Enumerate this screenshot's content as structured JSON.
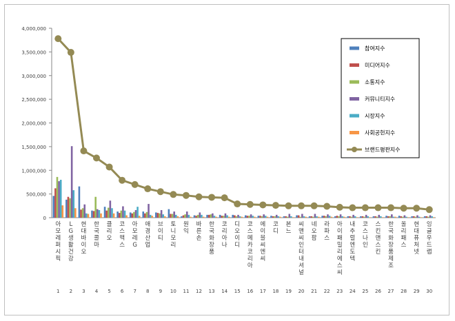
{
  "chart_data": {
    "type": "bar",
    "title": "",
    "xlabel": "",
    "ylabel": "",
    "ylim": [
      0,
      4000000
    ],
    "yticks": [
      "0",
      "500,000",
      "1,000,000",
      "1,500,000",
      "2,000,000",
      "2,500,000",
      "3,000,000",
      "3,500,000",
      "4,000,000"
    ],
    "grid": false,
    "legend_position": "right",
    "ranks": [
      "1",
      "2",
      "3",
      "4",
      "5",
      "6",
      "7",
      "8",
      "9",
      "10",
      "11",
      "12",
      "13",
      "14",
      "15",
      "16",
      "17",
      "18",
      "19",
      "20",
      "21",
      "22",
      "23",
      "24",
      "25",
      "26",
      "27",
      "28",
      "29",
      "30"
    ],
    "categories": [
      "아모레퍼시픽",
      "LG생활건강",
      "현대바이오",
      "한국콜마",
      "클리오",
      "코스맥스",
      "아모레G",
      "애경산업",
      "브이티",
      "토니모리",
      "원익",
      "바른손",
      "한국화장품",
      "코리아나",
      "디오이디",
      "코스메카코리아",
      "에이블씨엔씨",
      "코디",
      "본느",
      "씨앤씨인터내셔널",
      "네오팜",
      "라파스",
      "아이패밀리에스씨",
      "내추럴엔도텍",
      "코스나인",
      "스킨앤스킨",
      "한국화장품제조",
      "올리패스",
      "현대퓨처넷",
      "잉글우드랩"
    ],
    "series": [
      {
        "name": "참여지수",
        "color": "#4f81bd",
        "values": [
          460000,
          380000,
          660000,
          150000,
          230000,
          130000,
          110000,
          130000,
          110000,
          180000,
          30000,
          50000,
          60000,
          60000,
          60000,
          50000,
          40000,
          40000,
          30000,
          50000,
          30000,
          40000,
          30000,
          30000,
          30000,
          30000,
          40000,
          40000,
          30000,
          30000
        ]
      },
      {
        "name": "미디어지수",
        "color": "#c0504d",
        "values": [
          620000,
          440000,
          170000,
          140000,
          150000,
          100000,
          90000,
          90000,
          100000,
          80000,
          50000,
          40000,
          60000,
          40000,
          50000,
          40000,
          40000,
          30000,
          30000,
          50000,
          30000,
          40000,
          40000,
          30000,
          30000,
          30000,
          30000,
          30000,
          30000,
          30000
        ]
      },
      {
        "name": "소통지수",
        "color": "#9bbb59",
        "values": [
          860000,
          410000,
          200000,
          440000,
          210000,
          150000,
          120000,
          120000,
          90000,
          80000,
          70000,
          60000,
          70000,
          40000,
          30000,
          40000,
          30000,
          30000,
          20000,
          20000,
          20000,
          30000,
          30000,
          20000,
          20000,
          20000,
          30000,
          20000,
          20000,
          20000
        ]
      },
      {
        "name": "커뮤니티지수",
        "color": "#8064a2",
        "values": [
          770000,
          1510000,
          280000,
          180000,
          360000,
          240000,
          160000,
          290000,
          160000,
          130000,
          130000,
          110000,
          90000,
          90000,
          60000,
          70000,
          70000,
          60000,
          80000,
          80000,
          80000,
          70000,
          70000,
          60000,
          60000,
          60000,
          70000,
          50000,
          50000,
          50000
        ]
      },
      {
        "name": "시장지수",
        "color": "#4bacc6",
        "values": [
          800000,
          580000,
          90000,
          160000,
          200000,
          150000,
          230000,
          60000,
          70000,
          60000,
          60000,
          60000,
          40000,
          50000,
          30000,
          40000,
          40000,
          30000,
          30000,
          30000,
          30000,
          40000,
          30000,
          30000,
          30000,
          30000,
          20000,
          20000,
          20000,
          30000
        ]
      },
      {
        "name": "사회공헌지수",
        "color": "#f79646",
        "values": [
          260000,
          200000,
          80000,
          90000,
          90000,
          50000,
          40000,
          40000,
          30000,
          30000,
          20000,
          20000,
          20000,
          20000,
          20000,
          20000,
          20000,
          20000,
          10000,
          20000,
          20000,
          20000,
          20000,
          10000,
          10000,
          10000,
          20000,
          10000,
          10000,
          10000
        ]
      },
      {
        "name": "브랜드평판지수",
        "color": "#948a54",
        "type": "line",
        "values": [
          3780000,
          3490000,
          1410000,
          1260000,
          1070000,
          790000,
          700000,
          610000,
          550000,
          490000,
          470000,
          440000,
          430000,
          420000,
          290000,
          280000,
          270000,
          260000,
          250000,
          250000,
          250000,
          240000,
          220000,
          210000,
          210000,
          210000,
          210000,
          200000,
          200000,
          170000
        ]
      }
    ]
  }
}
